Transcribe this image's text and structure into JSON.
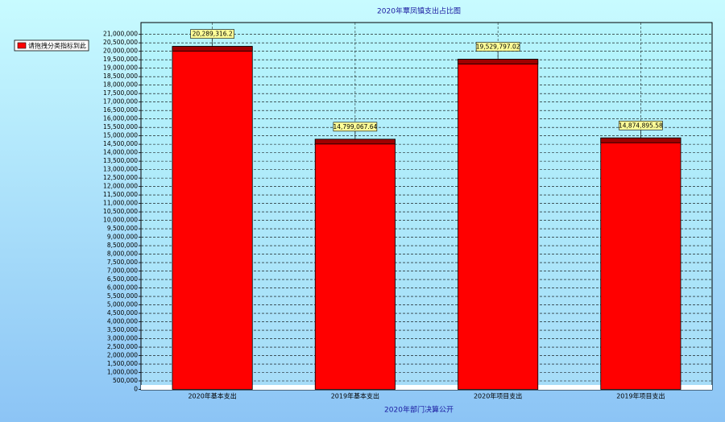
{
  "chart_data": {
    "type": "bar",
    "title": "2020年覃凤镇支出占比图",
    "x_label": "2020年部门决算公开",
    "legend": "请拖拽分类指标到此",
    "legend_position": "top-left",
    "color": "#ff0000",
    "grid": true,
    "categories": [
      "2020年基本支出",
      "2019年基本支出",
      "2020年项目支出",
      "2019年项目支出"
    ],
    "values": [
      20289316.2,
      14799067.64,
      19529797.02,
      14874895.58
    ],
    "value_labels": [
      "20,289,316.2",
      "14,799,067.64",
      "19,529,797.02",
      "14,874,895.58"
    ],
    "ylim": [
      0,
      21700000
    ],
    "yticks": [
      0,
      {
        "value": 500000,
        "label": "500,000"
      },
      {
        "value": 1000000,
        "label": "1,000,000"
      },
      {
        "value": 1500000,
        "label": "1,500,000"
      },
      {
        "value": 2000000,
        "label": "2,000,000"
      },
      {
        "value": 2500000,
        "label": "2,500,000"
      },
      {
        "value": 3000000,
        "label": "3,000,000"
      },
      {
        "value": 3500000,
        "label": "3,500,000"
      },
      {
        "value": 4000000,
        "label": "4,000,000"
      },
      {
        "value": 4500000,
        "label": "4,500,000"
      },
      {
        "value": 5000000,
        "label": "5,000,000"
      },
      {
        "value": 5500000,
        "label": "5,500,000"
      },
      {
        "value": 6000000,
        "label": "6,000,000"
      },
      {
        "value": 6500000,
        "label": "6,500,000"
      },
      {
        "value": 7000000,
        "label": "7,000,000"
      },
      {
        "value": 7500000,
        "label": "7,500,000"
      },
      {
        "value": 8000000,
        "label": "8,000,000"
      },
      {
        "value": 8500000,
        "label": "8,500,000"
      },
      {
        "value": 9000000,
        "label": "9,000,000"
      },
      {
        "value": 9500000,
        "label": "9,500,000"
      },
      {
        "value": 10000000,
        "label": "10,000,000"
      },
      {
        "value": 10500000,
        "label": "10,500,000"
      },
      {
        "value": 11000000,
        "label": "11,000,000"
      },
      {
        "value": 11500000,
        "label": "11,500,000"
      },
      {
        "value": 12000000,
        "label": "12,000,000"
      },
      {
        "value": 12500000,
        "label": "12,500,000"
      },
      {
        "value": 13000000,
        "label": "13,000,000"
      },
      {
        "value": 13500000,
        "label": "13,500,000"
      },
      {
        "value": 14000000,
        "label": "14,000,000"
      },
      {
        "value": 14500000,
        "label": "14,500,000"
      },
      {
        "value": 15000000,
        "label": "15,000,000"
      },
      {
        "value": 15500000,
        "label": "15,500,000"
      },
      {
        "value": 16000000,
        "label": "16,000,000"
      },
      {
        "value": 16500000,
        "label": "16,500,000"
      },
      {
        "value": 17000000,
        "label": "17,000,000"
      },
      {
        "value": 17500000,
        "label": "17,500,000"
      },
      {
        "value": 18000000,
        "label": "18,000,000"
      },
      {
        "value": 18500000,
        "label": "18,500,000"
      },
      {
        "value": 19000000,
        "label": "19,000,000"
      },
      {
        "value": 19500000,
        "label": "19,500,000"
      },
      {
        "value": 20000000,
        "label": "20,000,000"
      },
      {
        "value": 20500000,
        "label": "20,500,000"
      },
      {
        "value": 21000000,
        "label": "21,000,000"
      }
    ]
  }
}
